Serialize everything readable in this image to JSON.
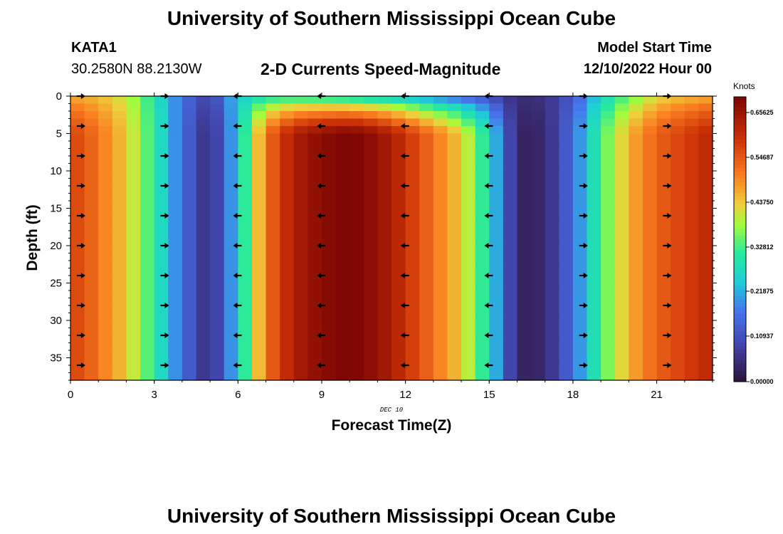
{
  "header": {
    "title": "University of Southern Mississippi Ocean Cube",
    "station_id": "KATA1",
    "station_coords": "30.2580N  88.2130W",
    "chart_title": "2-D Currents Speed-Magnitude",
    "model_start_label": "Model Start Time",
    "model_start_value": "12/10/2022 Hour 00"
  },
  "footer": {
    "title": "University of Southern Mississippi Ocean Cube"
  },
  "chart_data": {
    "type": "heatmap",
    "title": "2-D Currents Speed-Magnitude",
    "xlabel": "Forecast Time(Z)",
    "ylabel": "Depth (ft)",
    "x_date_label": "DEC 10",
    "xlim": [
      0,
      23
    ],
    "ylim": [
      0,
      38
    ],
    "x_ticks": [
      0,
      3,
      6,
      9,
      12,
      15,
      18,
      21
    ],
    "y_ticks": [
      0,
      5,
      10,
      15,
      20,
      25,
      30,
      35
    ],
    "colorbar": {
      "label": "Knots",
      "ticks": [
        "0.65625",
        "0.54687",
        "0.43750",
        "0.32812",
        "0.21875",
        "0.10937",
        "0.00000"
      ],
      "range": [
        0,
        0.7
      ]
    },
    "hours": [
      0,
      1,
      2,
      3,
      4,
      5,
      6,
      7,
      8,
      9,
      10,
      11,
      12,
      13,
      14,
      15,
      16,
      17,
      18,
      19,
      20,
      21,
      22,
      23
    ],
    "surface_speed": [
      0.45,
      0.44,
      0.4,
      0.3,
      0.16,
      0.09,
      0.25,
      0.26,
      0.24,
      0.22,
      0.2,
      0.18,
      0.16,
      0.13,
      0.1,
      0.08,
      0.05,
      0.06,
      0.12,
      0.25,
      0.33,
      0.4,
      0.43,
      0.44
    ],
    "bottom_speed": [
      0.58,
      0.52,
      0.44,
      0.31,
      0.16,
      0.04,
      0.25,
      0.52,
      0.64,
      0.68,
      0.7,
      0.67,
      0.6,
      0.52,
      0.44,
      0.28,
      0.03,
      0.04,
      0.16,
      0.33,
      0.46,
      0.54,
      0.58,
      0.62
    ],
    "arrow_times": [
      0.2,
      3.2,
      5.8,
      8.8,
      11.8,
      14.8,
      18.2,
      21.2
    ],
    "arrow_depths": [
      0,
      4,
      8,
      12,
      16,
      20,
      24,
      28,
      32,
      36
    ],
    "arrow_direction": [
      "east",
      "east",
      "west",
      "west",
      "west",
      "west",
      "east",
      "east"
    ]
  }
}
